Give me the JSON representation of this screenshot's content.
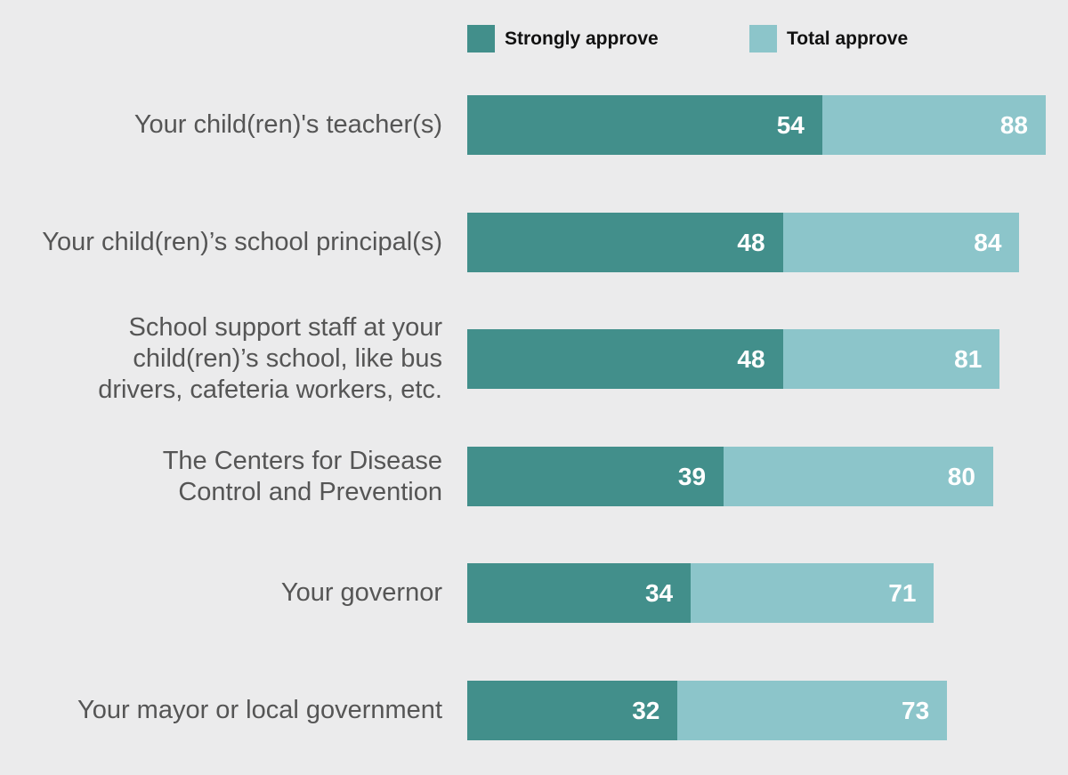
{
  "chart_data": {
    "type": "bar",
    "orientation": "horizontal",
    "title": "",
    "xlabel": "",
    "ylabel": "",
    "xlim": [
      0,
      88
    ],
    "grid": false,
    "legend_position": "top",
    "categories": [
      "Your child(ren)'s teacher(s)",
      "Your child(ren)’s school principal(s)",
      "School support staff at your child(ren)’s school, like bus drivers, cafeteria workers, etc.",
      "The Centers for Disease Control and Prevention",
      "Your governor",
      "Your mayor or local government"
    ],
    "category_lines": [
      [
        "Your child(ren)'s teacher(s)"
      ],
      [
        "Your child(ren)’s school principal(s)"
      ],
      [
        "School support staff at your",
        "child(ren)’s school, like bus",
        "drivers, cafeteria workers, etc."
      ],
      [
        "The Centers for Disease",
        "Control and Prevention"
      ],
      [
        "Your governor"
      ],
      [
        "Your mayor or local government"
      ]
    ],
    "series": [
      {
        "name": "Strongly approve",
        "color": "#428f8b",
        "values": [
          54,
          48,
          48,
          39,
          34,
          32
        ]
      },
      {
        "name": "Total approve",
        "color": "#8cc5ca",
        "values": [
          88,
          84,
          81,
          80,
          71,
          73
        ]
      }
    ]
  }
}
